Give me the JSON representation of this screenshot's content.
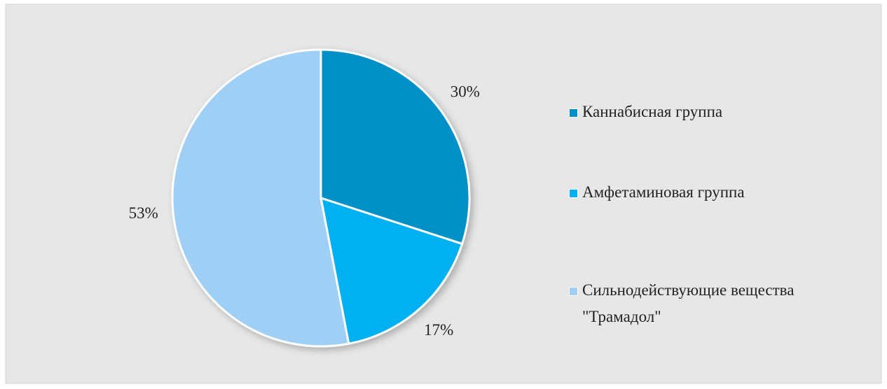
{
  "chart_data": {
    "type": "pie",
    "categories": [
      "Каннабисная группа",
      "Амфетаминовая группа",
      "Сильнодействующие вещества \"Трамадол\""
    ],
    "values": [
      30,
      17,
      53
    ],
    "value_labels": [
      "30%",
      "17%",
      "53%"
    ],
    "colors": [
      "#0090c8",
      "#00b0f0",
      "#a0cff5"
    ],
    "legend": "right"
  }
}
